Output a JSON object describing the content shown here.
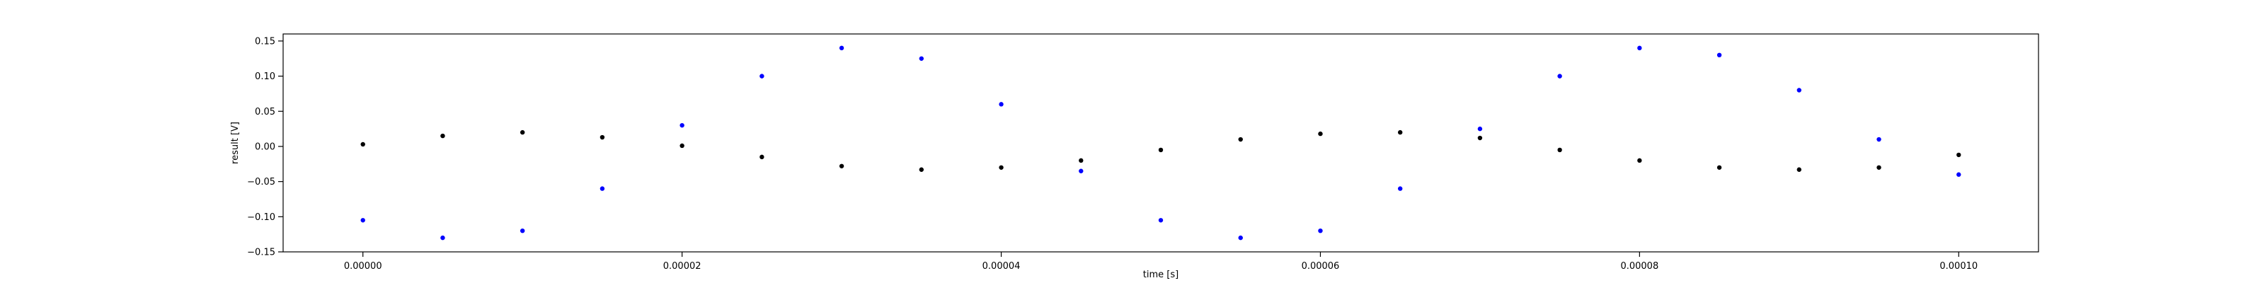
{
  "chart_data": {
    "type": "scatter",
    "title": "",
    "xlabel": "time [s]",
    "ylabel": "result [V]",
    "xlim": [
      -5e-06,
      0.000105
    ],
    "ylim": [
      -0.15,
      0.16
    ],
    "grid": false,
    "x_ticks": [
      0.0,
      2e-05,
      4e-05,
      6e-05,
      8e-05,
      0.0001
    ],
    "x_tick_labels": [
      "0.00000",
      "0.00002",
      "0.00004",
      "0.00006",
      "0.00008",
      "0.00010"
    ],
    "y_ticks": [
      -0.15,
      -0.1,
      -0.05,
      0.0,
      0.05,
      0.1,
      0.15
    ],
    "y_tick_labels": [
      "−0.15",
      "−0.10",
      "−0.05",
      "0.00",
      "0.05",
      "0.10",
      "0.15"
    ],
    "series": [
      {
        "color": "#0000ff",
        "x": [
          0.0,
          5e-06,
          1e-05,
          1.5e-05,
          2e-05,
          2.5e-05,
          3e-05,
          3.5e-05,
          4e-05,
          4.5e-05,
          5e-05,
          5.5e-05,
          6e-05,
          6.5e-05,
          7e-05,
          7.5e-05,
          8e-05,
          8.5e-05,
          9e-05,
          9.5e-05,
          0.0001
        ],
        "values": [
          -0.105,
          -0.13,
          -0.12,
          -0.06,
          0.03,
          0.1,
          0.14,
          0.125,
          0.06,
          -0.035,
          -0.105,
          -0.13,
          -0.12,
          -0.06,
          0.025,
          0.1,
          0.14,
          0.13,
          0.08,
          0.01,
          -0.04
        ]
      },
      {
        "color": "#000000",
        "x": [
          0.0,
          5e-06,
          1e-05,
          1.5e-05,
          2e-05,
          2.5e-05,
          3e-05,
          3.5e-05,
          4e-05,
          4.5e-05,
          5e-05,
          5.5e-05,
          6e-05,
          6.5e-05,
          7e-05,
          7.5e-05,
          8e-05,
          8.5e-05,
          9e-05,
          9.5e-05,
          0.0001
        ],
        "values": [
          0.003,
          0.015,
          0.02,
          0.013,
          0.001,
          -0.015,
          -0.028,
          -0.033,
          -0.03,
          -0.02,
          -0.005,
          0.01,
          0.018,
          0.02,
          0.012,
          -0.005,
          -0.02,
          -0.03,
          -0.033,
          -0.03,
          -0.012
        ]
      }
    ]
  }
}
